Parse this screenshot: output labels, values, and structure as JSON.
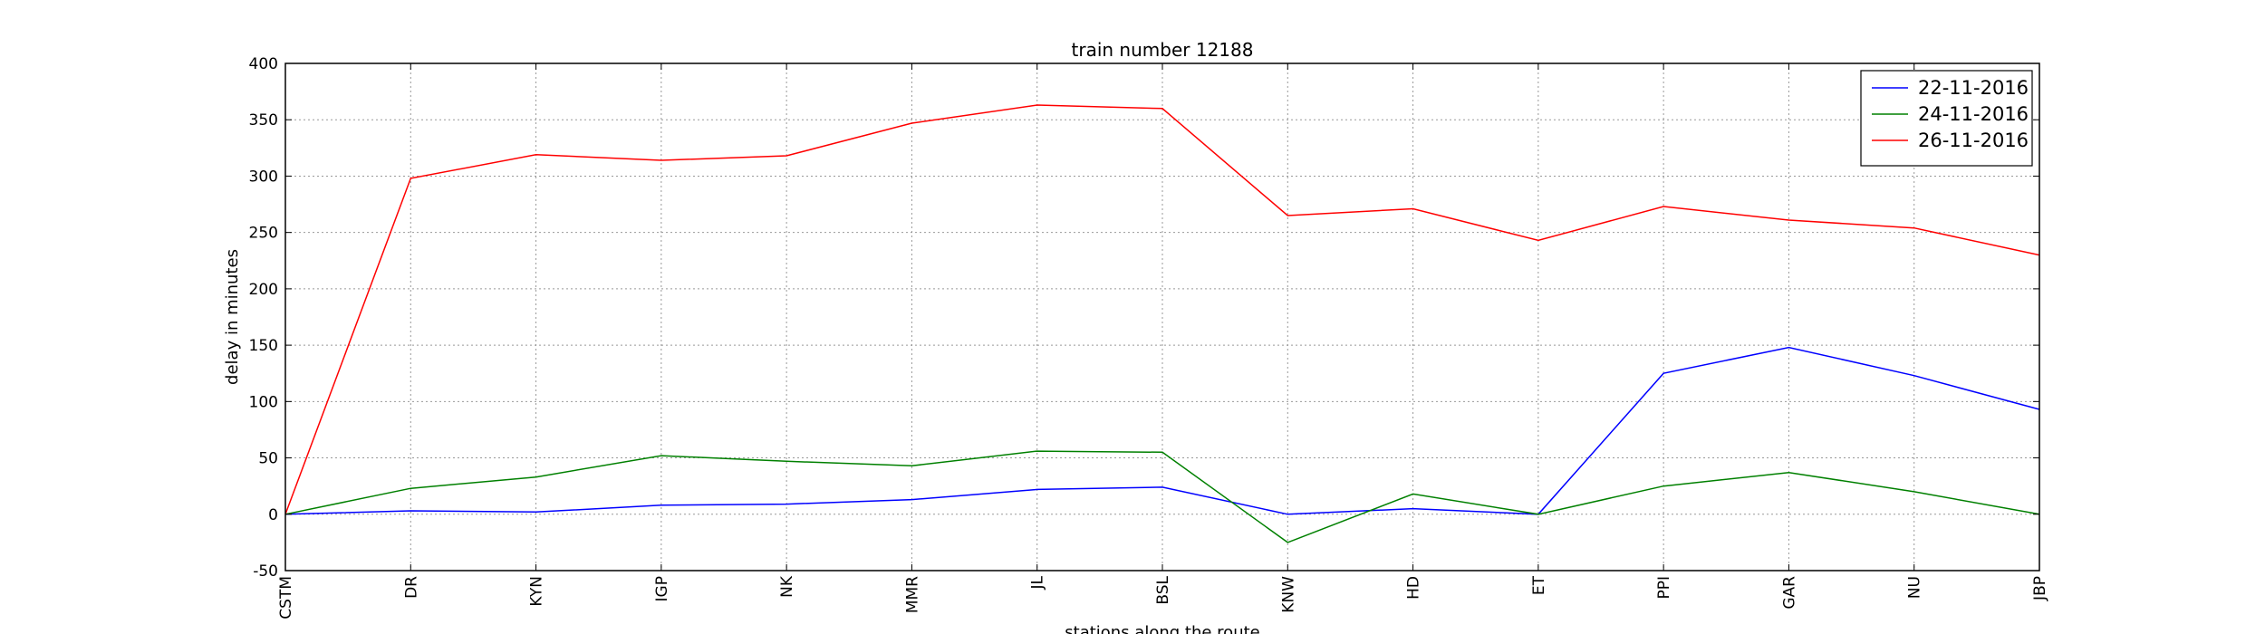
{
  "chart_data": {
    "type": "line",
    "title": "train number 12188",
    "xlabel": "stations along the route",
    "ylabel": "delay in minutes",
    "categories": [
      "CSTM",
      "DR",
      "KYN",
      "IGP",
      "NK",
      "MMR",
      "JL",
      "BSL",
      "KNW",
      "HD",
      "ET",
      "PPI",
      "GAR",
      "NU",
      "JBP"
    ],
    "ylim": [
      -50,
      400
    ],
    "yticks": [
      -50,
      0,
      50,
      100,
      150,
      200,
      250,
      300,
      350,
      400
    ],
    "grid": true,
    "legend_position": "top-right",
    "series": [
      {
        "name": "22-11-2016",
        "color": "#0000ff",
        "values": [
          0,
          3,
          2,
          8,
          9,
          13,
          22,
          24,
          0,
          5,
          0,
          125,
          148,
          123,
          93
        ]
      },
      {
        "name": "24-11-2016",
        "color": "#008000",
        "values": [
          0,
          23,
          33,
          52,
          47,
          43,
          56,
          55,
          -25,
          18,
          0,
          25,
          37,
          20,
          0
        ]
      },
      {
        "name": "26-11-2016",
        "color": "#ff0000",
        "values": [
          0,
          298,
          319,
          314,
          318,
          347,
          363,
          360,
          265,
          271,
          243,
          273,
          261,
          254,
          230
        ]
      }
    ]
  }
}
